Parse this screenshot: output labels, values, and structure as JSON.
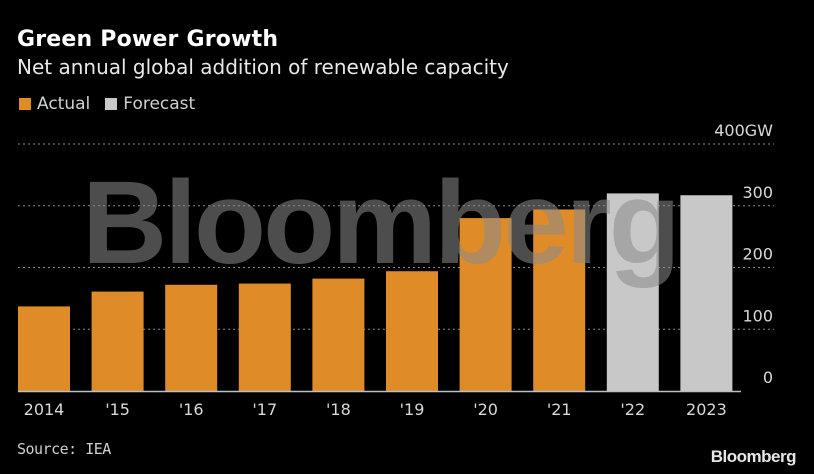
{
  "header": {
    "title": "Green Power Growth",
    "subtitle": "Net annual global addition of renewable capacity"
  },
  "legend": [
    {
      "label": "Actual",
      "color": "#de8b28"
    },
    {
      "label": "Forecast",
      "color": "#c8c8c8"
    }
  ],
  "footer": {
    "source": "Source: IEA",
    "brand": "Bloomberg"
  },
  "watermark": "Bloomberg",
  "chart_data": {
    "type": "bar",
    "title": "Green Power Growth",
    "subtitle": "Net annual global addition of renewable capacity",
    "xlabel": "",
    "ylabel": "GW",
    "ylim": [
      0,
      400
    ],
    "yticks": [
      0,
      100,
      200,
      300,
      400
    ],
    "ytick_labels": [
      "0",
      "100",
      "200",
      "300",
      "400GW"
    ],
    "y_axis_position": "right",
    "grid": true,
    "legend_position": "top-left",
    "categories": [
      "2014",
      "'15",
      "'16",
      "'17",
      "'18",
      "'19",
      "'20",
      "'21",
      "'22",
      "2023"
    ],
    "values": [
      137,
      161,
      172,
      174,
      182,
      194,
      280,
      294,
      320,
      317
    ],
    "kind": [
      "Actual",
      "Actual",
      "Actual",
      "Actual",
      "Actual",
      "Actual",
      "Actual",
      "Actual",
      "Forecast",
      "Forecast"
    ],
    "series": [
      {
        "name": "Actual",
        "color": "#de8b28",
        "values": [
          137,
          161,
          172,
          174,
          182,
          194,
          280,
          294,
          null,
          null
        ]
      },
      {
        "name": "Forecast",
        "color": "#c8c8c8",
        "values": [
          null,
          null,
          null,
          null,
          null,
          null,
          null,
          null,
          320,
          317
        ]
      }
    ],
    "source": "Source: IEA"
  }
}
